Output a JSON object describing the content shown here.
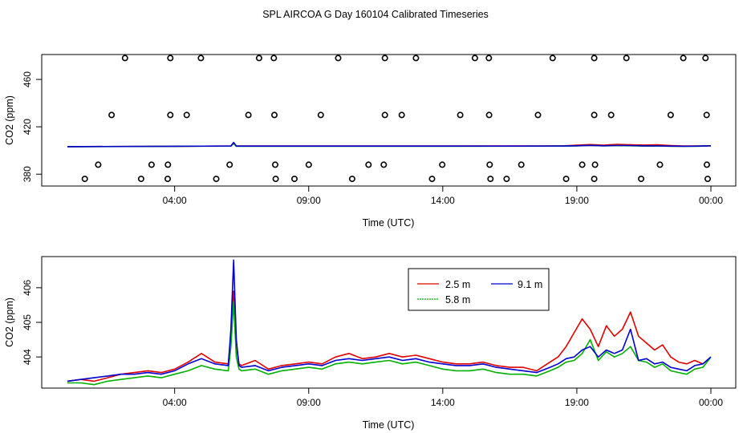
{
  "title": "SPL AIRCOA G  Day 160104  Calibrated Timeseries",
  "colors": {
    "red": "#e00000",
    "green": "#00b000",
    "blue": "#0000d0",
    "axis": "#000000"
  },
  "chart_data": [
    {
      "type": "scatter",
      "name": "top-panel",
      "xlabel": "Time (UTC)",
      "ylabel": "CO2 (ppm)",
      "x_unit": "hours since 00:00 day 160104",
      "xlim": [
        0.0,
        24.0
      ],
      "ylim": [
        370.0,
        481.0
      ],
      "x_ticks": [
        4,
        9,
        14,
        19,
        24
      ],
      "x_tick_labels": [
        "04:00",
        "09:00",
        "14:00",
        "19:00",
        "00:00"
      ],
      "y_ticks": [
        380,
        420,
        460
      ],
      "y_tick_labels": [
        "380",
        "420",
        "460"
      ],
      "outliers": {
        "x": [
          2.15,
          3.84,
          4.98,
          7.15,
          7.7,
          10.1,
          11.84,
          13.0,
          15.2,
          15.72,
          18.1,
          19.65,
          20.85,
          22.97,
          23.8,
          1.65,
          3.84,
          4.45,
          6.75,
          7.72,
          9.45,
          11.84,
          12.47,
          14.65,
          15.73,
          17.55,
          19.65,
          20.28,
          22.5,
          23.84,
          1.15,
          3.14,
          3.75,
          6.05,
          7.75,
          9.0,
          11.23,
          11.8,
          13.98,
          15.75,
          16.93,
          19.2,
          19.68,
          22.1,
          23.85,
          0.65,
          2.75,
          3.74,
          5.55,
          7.77,
          8.47,
          10.62,
          13.6,
          15.78,
          16.38,
          18.6,
          19.65,
          21.4,
          23.88
        ],
        "y": [
          478,
          478,
          478,
          478,
          478,
          478,
          478,
          478,
          478,
          478,
          478,
          478,
          478,
          478,
          478,
          430,
          430,
          430,
          430,
          430,
          430,
          430,
          430,
          430,
          430,
          430,
          430,
          430,
          430,
          430,
          388,
          388,
          388,
          388,
          388,
          388,
          388,
          388,
          388,
          388,
          388,
          388,
          388,
          388,
          388,
          376,
          376,
          376,
          376,
          376,
          376,
          376,
          376,
          376,
          376,
          376,
          376,
          376,
          376
        ]
      },
      "series": [
        {
          "name": "2.5 m",
          "color": "#e00000",
          "x": [
            0,
            4.0,
            6.1,
            6.2,
            6.3,
            6.4,
            14.0,
            18.5,
            19.0,
            19.5,
            20.0,
            20.5,
            21.0,
            21.5,
            22.0,
            22.5,
            23.0,
            23.5,
            24.0
          ],
          "y": [
            403.2,
            403.6,
            403.8,
            406.5,
            403.8,
            403.8,
            403.8,
            403.9,
            404.5,
            405.0,
            404.5,
            405.2,
            404.8,
            404.6,
            404.8,
            404.2,
            403.8,
            403.8,
            404.0
          ]
        },
        {
          "name": "5.8 m",
          "color": "#00b000",
          "x": [
            0,
            4.0,
            6.1,
            6.2,
            6.3,
            6.4,
            14.0,
            18.5,
            19.0,
            19.5,
            20.0,
            20.5,
            21.0,
            21.5,
            22.0,
            22.5,
            23.0,
            23.5,
            24.0
          ],
          "y": [
            403.2,
            403.5,
            403.7,
            405.9,
            403.6,
            403.6,
            403.6,
            403.7,
            403.9,
            404.3,
            403.9,
            404.1,
            404.0,
            403.7,
            403.8,
            403.6,
            403.5,
            403.6,
            404.0
          ]
        },
        {
          "name": "9.1 m",
          "color": "#0000d0",
          "x": [
            0,
            4.0,
            6.1,
            6.2,
            6.3,
            6.4,
            14.0,
            18.5,
            19.0,
            19.5,
            20.0,
            20.5,
            21.0,
            21.5,
            22.0,
            22.5,
            23.0,
            23.5,
            24.0
          ],
          "y": [
            403.2,
            403.6,
            403.8,
            406.8,
            403.7,
            403.7,
            403.7,
            403.8,
            404.0,
            404.3,
            404.0,
            404.2,
            404.2,
            403.9,
            403.9,
            403.7,
            403.6,
            403.7,
            404.0
          ]
        }
      ]
    },
    {
      "type": "line",
      "name": "bottom-panel",
      "xlabel": "Time (UTC)",
      "ylabel": "CO2 (ppm)",
      "x_unit": "hours since 00:00 day 160104",
      "xlim": [
        0.0,
        24.0
      ],
      "ylim": [
        403.1,
        406.9
      ],
      "x_ticks": [
        4,
        9,
        14,
        19,
        24
      ],
      "x_tick_labels": [
        "04:00",
        "09:00",
        "14:00",
        "19:00",
        "00:00"
      ],
      "y_ticks": [
        404,
        405,
        406
      ],
      "y_tick_labels": [
        "404",
        "405",
        "406"
      ],
      "legend": {
        "entries": [
          "2.5 m",
          "5.8 m",
          "9.1 m"
        ],
        "placement": "top-right"
      },
      "series": [
        {
          "name": "2.5 m",
          "color": "#e00000",
          "x": [
            0.0,
            0.5,
            1.0,
            1.5,
            2.0,
            2.5,
            3.0,
            3.5,
            4.0,
            4.5,
            5.0,
            5.5,
            6.0,
            6.1,
            6.2,
            6.3,
            6.4,
            6.5,
            7.0,
            7.5,
            8.0,
            8.5,
            9.0,
            9.5,
            10.0,
            10.5,
            11.0,
            11.5,
            12.0,
            12.5,
            13.0,
            13.5,
            14.0,
            14.5,
            15.0,
            15.5,
            16.0,
            16.5,
            17.0,
            17.5,
            18.0,
            18.3,
            18.6,
            18.9,
            19.2,
            19.5,
            19.8,
            20.1,
            20.4,
            20.7,
            21.0,
            21.3,
            21.6,
            21.9,
            22.2,
            22.5,
            22.8,
            23.1,
            23.4,
            23.7,
            24.0
          ],
          "y": [
            403.3,
            403.35,
            403.3,
            403.4,
            403.5,
            403.55,
            403.6,
            403.55,
            403.65,
            403.85,
            404.1,
            403.85,
            403.8,
            404.6,
            405.9,
            404.3,
            403.8,
            403.75,
            403.9,
            403.65,
            403.75,
            403.8,
            403.85,
            403.8,
            404.0,
            404.1,
            403.95,
            404.0,
            404.1,
            404.0,
            404.05,
            403.95,
            403.85,
            403.8,
            403.8,
            403.85,
            403.75,
            403.7,
            403.7,
            403.6,
            403.85,
            404.0,
            404.3,
            404.7,
            405.1,
            404.8,
            404.3,
            404.9,
            404.6,
            404.8,
            405.3,
            404.6,
            404.4,
            404.2,
            404.35,
            404.0,
            403.85,
            403.8,
            403.9,
            403.8,
            404.0
          ]
        },
        {
          "name": "5.8 m",
          "color": "#00b000",
          "x": [
            0.0,
            0.5,
            1.0,
            1.5,
            2.0,
            2.5,
            3.0,
            3.5,
            4.0,
            4.5,
            5.0,
            5.5,
            6.0,
            6.1,
            6.2,
            6.3,
            6.4,
            6.5,
            7.0,
            7.5,
            8.0,
            8.5,
            9.0,
            9.5,
            10.0,
            10.5,
            11.0,
            11.5,
            12.0,
            12.5,
            13.0,
            13.5,
            14.0,
            14.5,
            15.0,
            15.5,
            16.0,
            16.5,
            17.0,
            17.5,
            18.0,
            18.3,
            18.6,
            18.9,
            19.2,
            19.5,
            19.8,
            20.1,
            20.4,
            20.7,
            21.0,
            21.3,
            21.6,
            21.9,
            22.2,
            22.5,
            22.8,
            23.1,
            23.4,
            23.7,
            24.0
          ],
          "y": [
            403.25,
            403.25,
            403.2,
            403.3,
            403.35,
            403.4,
            403.45,
            403.4,
            403.5,
            403.6,
            403.75,
            403.65,
            403.6,
            404.3,
            405.6,
            404.0,
            403.65,
            403.6,
            403.65,
            403.5,
            403.6,
            403.65,
            403.7,
            403.65,
            403.8,
            403.85,
            403.8,
            403.85,
            403.9,
            403.8,
            403.85,
            403.75,
            403.65,
            403.6,
            403.6,
            403.65,
            403.55,
            403.5,
            403.5,
            403.45,
            403.6,
            403.7,
            403.85,
            403.9,
            404.1,
            404.5,
            403.9,
            404.15,
            404.0,
            404.1,
            404.3,
            403.9,
            403.85,
            403.7,
            403.8,
            403.6,
            403.55,
            403.5,
            403.65,
            403.7,
            404.0
          ]
        },
        {
          "name": "9.1 m",
          "color": "#0000d0",
          "x": [
            0.0,
            0.5,
            1.0,
            1.5,
            2.0,
            2.5,
            3.0,
            3.5,
            4.0,
            4.5,
            5.0,
            5.5,
            6.0,
            6.1,
            6.2,
            6.3,
            6.4,
            6.5,
            7.0,
            7.5,
            8.0,
            8.5,
            9.0,
            9.5,
            10.0,
            10.5,
            11.0,
            11.5,
            12.0,
            12.5,
            13.0,
            13.5,
            14.0,
            14.5,
            15.0,
            15.5,
            16.0,
            16.5,
            17.0,
            17.5,
            18.0,
            18.3,
            18.6,
            18.9,
            19.2,
            19.5,
            19.8,
            20.1,
            20.4,
            20.7,
            21.0,
            21.3,
            21.6,
            21.9,
            22.2,
            22.5,
            22.8,
            23.1,
            23.4,
            23.7,
            24.0
          ],
          "y": [
            403.3,
            403.35,
            403.4,
            403.45,
            403.5,
            403.5,
            403.55,
            403.5,
            403.6,
            403.8,
            403.95,
            403.8,
            403.75,
            404.8,
            406.8,
            404.5,
            403.75,
            403.7,
            403.75,
            403.6,
            403.7,
            403.75,
            403.8,
            403.75,
            403.9,
            403.95,
            403.9,
            403.95,
            404.0,
            403.9,
            403.95,
            403.85,
            403.8,
            403.75,
            403.75,
            403.8,
            403.7,
            403.65,
            403.6,
            403.55,
            403.7,
            403.8,
            403.95,
            404.0,
            404.2,
            404.3,
            404.0,
            404.2,
            404.1,
            404.2,
            404.8,
            403.9,
            403.95,
            403.8,
            403.85,
            403.7,
            403.65,
            403.6,
            403.75,
            403.8,
            404.0
          ]
        }
      ]
    }
  ]
}
